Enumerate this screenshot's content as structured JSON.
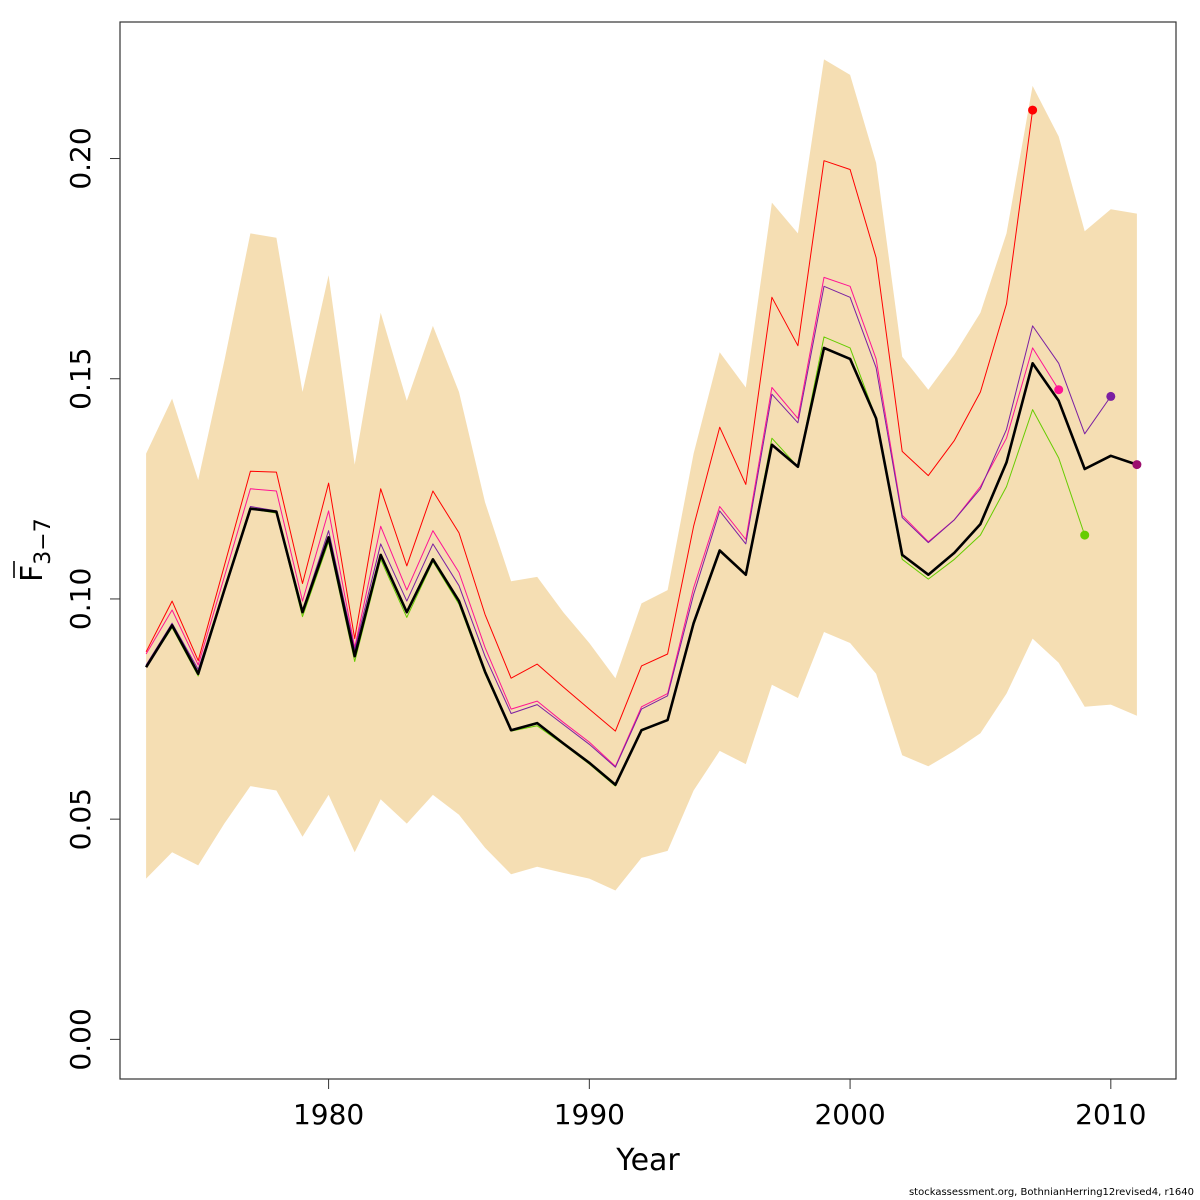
{
  "chart_data": {
    "type": "line",
    "title": "",
    "xlabel": "Year",
    "ylabel_main": "F",
    "ylabel_sub": "3−7",
    "xlim": [
      1972,
      2012.5
    ],
    "ylim": [
      -0.009,
      0.231
    ],
    "x_ticks": [
      1980,
      1990,
      2000,
      2010
    ],
    "y_ticks": [
      0.0,
      0.05,
      0.1,
      0.15,
      0.2
    ],
    "y_tick_labels": [
      "0.00",
      "0.05",
      "0.10",
      "0.15",
      "0.20"
    ],
    "grid": false,
    "legend": "none",
    "confidence_band": {
      "color": "#F5DEB3",
      "years": [
        1973,
        1974,
        1975,
        1976,
        1977,
        1978,
        1979,
        1980,
        1981,
        1982,
        1983,
        1984,
        1985,
        1986,
        1987,
        1988,
        1989,
        1990,
        1991,
        1992,
        1993,
        1994,
        1995,
        1996,
        1997,
        1998,
        1999,
        2000,
        2001,
        2002,
        2003,
        2004,
        2005,
        2006,
        2007,
        2008,
        2009,
        2010,
        2011
      ],
      "lower": [
        0.0365,
        0.0425,
        0.0395,
        0.049,
        0.0575,
        0.0565,
        0.046,
        0.0555,
        0.0425,
        0.0545,
        0.049,
        0.0555,
        0.051,
        0.0435,
        0.0375,
        0.0392,
        0.0378,
        0.0365,
        0.0338,
        0.0412,
        0.0428,
        0.0565,
        0.0655,
        0.0625,
        0.0805,
        0.0775,
        0.0925,
        0.09,
        0.083,
        0.0645,
        0.062,
        0.0655,
        0.0695,
        0.0785,
        0.091,
        0.0855,
        0.0755,
        0.076,
        0.0735
      ],
      "upper": [
        0.133,
        0.1455,
        0.127,
        0.154,
        0.183,
        0.182,
        0.147,
        0.1735,
        0.1305,
        0.165,
        0.145,
        0.162,
        0.147,
        0.122,
        0.104,
        0.105,
        0.097,
        0.09,
        0.082,
        0.099,
        0.102,
        0.133,
        0.156,
        0.148,
        0.19,
        0.183,
        0.2225,
        0.219,
        0.199,
        0.155,
        0.1475,
        0.1555,
        0.165,
        0.183,
        0.2165,
        0.205,
        0.1835,
        0.1885,
        0.1875
      ]
    },
    "series": [
      {
        "color": "#FF0000",
        "width": 1,
        "x": [
          1973,
          1974,
          1975,
          1976,
          1977,
          1978,
          1979,
          1980,
          1981,
          1982,
          1983,
          1984,
          1985,
          1986,
          1987,
          1988,
          1989,
          1990,
          1991,
          1992,
          1993,
          1994,
          1995,
          1996,
          1997,
          1998,
          1999,
          2000,
          2001,
          2002,
          2003,
          2004,
          2005,
          2006,
          2007
        ],
        "values": [
          0.088,
          0.0995,
          0.086,
          0.1075,
          0.129,
          0.1288,
          0.1035,
          0.1263,
          0.091,
          0.125,
          0.1075,
          0.1245,
          0.115,
          0.0965,
          0.082,
          0.0852,
          0.08,
          0.075,
          0.07,
          0.0848,
          0.0875,
          0.1165,
          0.139,
          0.126,
          0.1685,
          0.1575,
          0.1995,
          0.1975,
          0.1775,
          0.1335,
          0.128,
          0.136,
          0.147,
          0.167,
          0.211
        ],
        "end_marker": true
      },
      {
        "color": "#FF1493",
        "width": 1,
        "x": [
          1973,
          1974,
          1975,
          1976,
          1977,
          1978,
          1979,
          1980,
          1981,
          1982,
          1983,
          1984,
          1985,
          1986,
          1987,
          1988,
          1989,
          1990,
          1991,
          1992,
          1993,
          1994,
          1995,
          1996,
          1997,
          1998,
          1999,
          2000,
          2001,
          2002,
          2003,
          2004,
          2005,
          2006,
          2007,
          2008
        ],
        "values": [
          0.0875,
          0.0975,
          0.085,
          0.105,
          0.125,
          0.1245,
          0.0995,
          0.12,
          0.089,
          0.1165,
          0.102,
          0.1155,
          0.106,
          0.089,
          0.075,
          0.0768,
          0.072,
          0.0675,
          0.062,
          0.0755,
          0.0785,
          0.1025,
          0.121,
          0.1135,
          0.148,
          0.141,
          0.173,
          0.171,
          0.1545,
          0.119,
          0.113,
          0.118,
          0.1255,
          0.1365,
          0.157,
          0.1475
        ],
        "end_marker": true
      },
      {
        "color": "#7B1FA2",
        "width": 1,
        "x": [
          1973,
          1974,
          1975,
          1976,
          1977,
          1978,
          1979,
          1980,
          1981,
          1982,
          1983,
          1984,
          1985,
          1986,
          1987,
          1988,
          1989,
          1990,
          1991,
          1992,
          1993,
          1994,
          1995,
          1996,
          1997,
          1998,
          1999,
          2000,
          2001,
          2002,
          2003,
          2004,
          2005,
          2006,
          2007,
          2008,
          2009,
          2010
        ],
        "values": [
          0.085,
          0.0945,
          0.084,
          0.102,
          0.121,
          0.12,
          0.0975,
          0.1155,
          0.0885,
          0.1125,
          0.0995,
          0.1125,
          0.103,
          0.087,
          0.074,
          0.076,
          0.0715,
          0.067,
          0.0618,
          0.075,
          0.078,
          0.101,
          0.12,
          0.1125,
          0.1465,
          0.14,
          0.171,
          0.1685,
          0.1525,
          0.1185,
          0.1128,
          0.118,
          0.125,
          0.1385,
          0.162,
          0.1535,
          0.1375,
          0.146
        ],
        "end_marker": true
      },
      {
        "color": "#66CC00",
        "width": 1,
        "x": [
          1973,
          1974,
          1975,
          1976,
          1977,
          1978,
          1979,
          1980,
          1981,
          1982,
          1983,
          1984,
          1985,
          1986,
          1987,
          1988,
          1989,
          1990,
          1991,
          1992,
          1993,
          1994,
          1995,
          1996,
          1997,
          1998,
          1999,
          2000,
          2001,
          2002,
          2003,
          2004,
          2005,
          2006,
          2007,
          2008,
          2009
        ],
        "values": [
          0.0845,
          0.0935,
          0.0825,
          0.102,
          0.1205,
          0.1195,
          0.096,
          0.113,
          0.0858,
          0.109,
          0.0958,
          0.1085,
          0.0988,
          0.083,
          0.07,
          0.0712,
          0.067,
          0.0625,
          0.0575,
          0.07,
          0.0725,
          0.094,
          0.111,
          0.1055,
          0.1365,
          0.13,
          0.1595,
          0.157,
          0.141,
          0.109,
          0.1045,
          0.109,
          0.1145,
          0.1255,
          0.143,
          0.132,
          0.1145
        ],
        "end_marker": true
      },
      {
        "color": "#9C0F6E",
        "width": 1,
        "x": [
          1973,
          1974,
          1975,
          1976,
          1977,
          1978,
          1979,
          1980,
          1981,
          1982,
          1983,
          1984,
          1985,
          1986,
          1987,
          1988,
          1989,
          1990,
          1991,
          1992,
          1993,
          1994,
          1995,
          1996,
          1997,
          1998,
          1999,
          2000,
          2001,
          2002,
          2003,
          2004,
          2005,
          2006,
          2007,
          2008,
          2009,
          2010,
          2011
        ],
        "values": [
          0.0845,
          0.094,
          0.083,
          0.102,
          0.1205,
          0.1198,
          0.097,
          0.114,
          0.087,
          0.11,
          0.097,
          0.109,
          0.0995,
          0.0835,
          0.0702,
          0.0718,
          0.0672,
          0.0628,
          0.0578,
          0.0702,
          0.0725,
          0.0945,
          0.111,
          0.1055,
          0.135,
          0.13,
          0.157,
          0.1545,
          0.141,
          0.11,
          0.1055,
          0.1105,
          0.117,
          0.131,
          0.1535,
          0.145,
          0.1295,
          0.1325,
          0.1305
        ],
        "end_marker": true
      },
      {
        "color": "#000000",
        "width": 2.6,
        "x": [
          1973,
          1974,
          1975,
          1976,
          1977,
          1978,
          1979,
          1980,
          1981,
          1982,
          1983,
          1984,
          1985,
          1986,
          1987,
          1988,
          1989,
          1990,
          1991,
          1992,
          1993,
          1994,
          1995,
          1996,
          1997,
          1998,
          1999,
          2000,
          2001,
          2002,
          2003,
          2004,
          2005,
          2006,
          2007,
          2008,
          2009,
          2010,
          2011
        ],
        "values": [
          0.0845,
          0.094,
          0.083,
          0.102,
          0.1205,
          0.1198,
          0.097,
          0.114,
          0.087,
          0.11,
          0.097,
          0.109,
          0.0995,
          0.0835,
          0.0702,
          0.0718,
          0.0672,
          0.0628,
          0.0578,
          0.0702,
          0.0725,
          0.0945,
          0.111,
          0.1055,
          0.135,
          0.13,
          0.157,
          0.1545,
          0.141,
          0.11,
          0.1055,
          0.1105,
          0.117,
          0.131,
          0.1535,
          0.145,
          0.1295,
          0.1325,
          0.1305
        ],
        "end_marker": false
      }
    ]
  },
  "footer_note": "stockassessment.org, BothnianHerring12revised4, r1640"
}
